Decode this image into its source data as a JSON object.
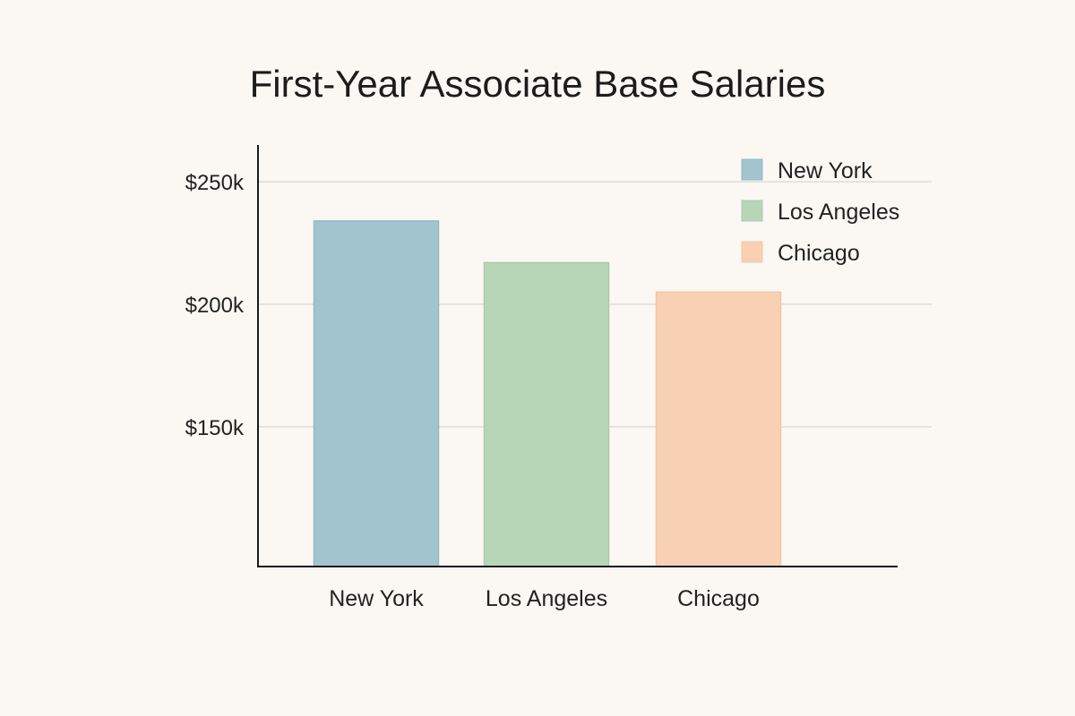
{
  "chart_data": {
    "type": "bar",
    "title": "First-Year Associate Base Salaries",
    "xlabel": "",
    "ylabel": "",
    "categories": [
      "New York",
      "Los Angeles",
      "Chicago"
    ],
    "values": [
      234000,
      217000,
      205000
    ],
    "ylim": [
      93000,
      265000
    ],
    "yticks": [
      150000,
      200000,
      250000
    ],
    "ytick_labels": [
      "$150k",
      "$200k",
      "$250k"
    ],
    "grid": true,
    "legend": {
      "placement": "top-right",
      "entries": [
        "New York",
        "Los Angeles",
        "Chicago"
      ]
    },
    "colors": [
      "#a2c4cf",
      "#b7d6b8",
      "#f8d1b4"
    ],
    "bar_border_colors": [
      "#92b8c4",
      "#a9cbaa",
      "#f1c6a5"
    ]
  }
}
